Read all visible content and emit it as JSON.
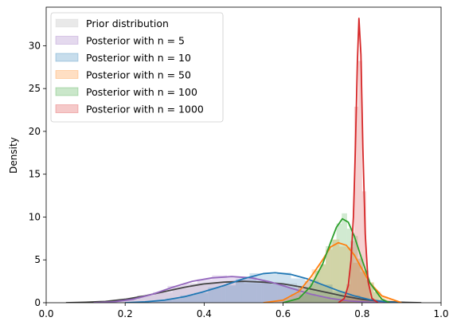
{
  "chart_data": {
    "type": "area",
    "xlabel": "",
    "ylabel": "Density",
    "xlim": [
      0.0,
      1.0
    ],
    "ylim": [
      0,
      34.5
    ],
    "xticks": [
      "0.0",
      "0.2",
      "0.4",
      "0.6",
      "0.8",
      "1.0"
    ],
    "yticks": [
      "0",
      "5",
      "10",
      "15",
      "20",
      "25",
      "30"
    ],
    "grid": false,
    "legend_position": "upper-left",
    "legend": [
      {
        "text": "Prior distribution",
        "color": "#d3d3d3"
      },
      {
        "text": "Posterior with n = 5",
        "color": "#9467bd"
      },
      {
        "text": "Posterior with n = 10",
        "color": "#1f77b4"
      },
      {
        "text": "Posterior with n = 50",
        "color": "#ff7f0e"
      },
      {
        "text": "Posterior with n = 100",
        "color": "#2ca02c"
      },
      {
        "text": "Posterior with n = 1000",
        "color": "#d62728"
      }
    ],
    "series": [
      {
        "name": "Prior distribution",
        "color": "#444444",
        "hist_color": "#d3d3d3",
        "x": [
          0.05,
          0.1,
          0.15,
          0.2,
          0.25,
          0.3,
          0.35,
          0.4,
          0.45,
          0.5,
          0.55,
          0.6,
          0.65,
          0.7,
          0.75,
          0.8,
          0.85,
          0.9,
          0.95
        ],
        "density": [
          0.0,
          0.05,
          0.15,
          0.4,
          0.8,
          1.3,
          1.8,
          2.2,
          2.4,
          2.5,
          2.4,
          2.2,
          1.8,
          1.3,
          0.8,
          0.4,
          0.15,
          0.05,
          0.0
        ]
      },
      {
        "name": "Posterior with n = 5",
        "color": "#9467bd",
        "hist_color": "#9467bd",
        "x": [
          0.12,
          0.17,
          0.22,
          0.27,
          0.32,
          0.37,
          0.42,
          0.47,
          0.52,
          0.57,
          0.62,
          0.67,
          0.72,
          0.77,
          0.82,
          0.87
        ],
        "density": [
          0.0,
          0.1,
          0.4,
          1.0,
          1.8,
          2.5,
          2.9,
          3.05,
          2.9,
          2.4,
          1.7,
          1.0,
          0.5,
          0.2,
          0.05,
          0.0
        ]
      },
      {
        "name": "Posterior with n = 10",
        "color": "#1f77b4",
        "hist_color": "#1f77b4",
        "x": [
          0.2,
          0.25,
          0.3,
          0.35,
          0.4,
          0.45,
          0.5,
          0.55,
          0.58,
          0.62,
          0.66,
          0.7,
          0.74,
          0.78,
          0.82,
          0.86,
          0.9
        ],
        "density": [
          0.0,
          0.1,
          0.3,
          0.7,
          1.3,
          2.0,
          2.8,
          3.4,
          3.5,
          3.3,
          2.8,
          2.1,
          1.4,
          0.8,
          0.35,
          0.1,
          0.0
        ]
      },
      {
        "name": "Posterior with n = 50",
        "color": "#ff7f0e",
        "hist_color": "#ff7f0e",
        "x": [
          0.55,
          0.6,
          0.64,
          0.67,
          0.7,
          0.72,
          0.74,
          0.76,
          0.78,
          0.8,
          0.82,
          0.85,
          0.9
        ],
        "density": [
          0.0,
          0.3,
          1.3,
          3.0,
          5.0,
          6.5,
          7.0,
          6.7,
          5.6,
          3.9,
          2.3,
          0.8,
          0.0
        ]
      },
      {
        "name": "Posterior with n = 100",
        "color": "#2ca02c",
        "hist_color": "#2ca02c",
        "x": [
          0.6,
          0.64,
          0.67,
          0.7,
          0.72,
          0.735,
          0.75,
          0.765,
          0.78,
          0.8,
          0.82,
          0.85,
          0.87
        ],
        "density": [
          0.0,
          0.5,
          1.9,
          4.5,
          7.0,
          8.8,
          9.8,
          9.4,
          7.8,
          5.0,
          2.3,
          0.4,
          0.0
        ]
      },
      {
        "name": "Posterior with n = 1000",
        "color": "#d62728",
        "hist_color": "#d62728",
        "x": [
          0.74,
          0.755,
          0.765,
          0.772,
          0.778,
          0.783,
          0.788,
          0.792,
          0.797,
          0.802,
          0.808,
          0.815,
          0.825,
          0.84
        ],
        "density": [
          0.0,
          0.5,
          2.0,
          5.0,
          10.0,
          18.0,
          28.0,
          33.2,
          29.0,
          18.0,
          8.0,
          2.5,
          0.5,
          0.0
        ]
      }
    ]
  }
}
